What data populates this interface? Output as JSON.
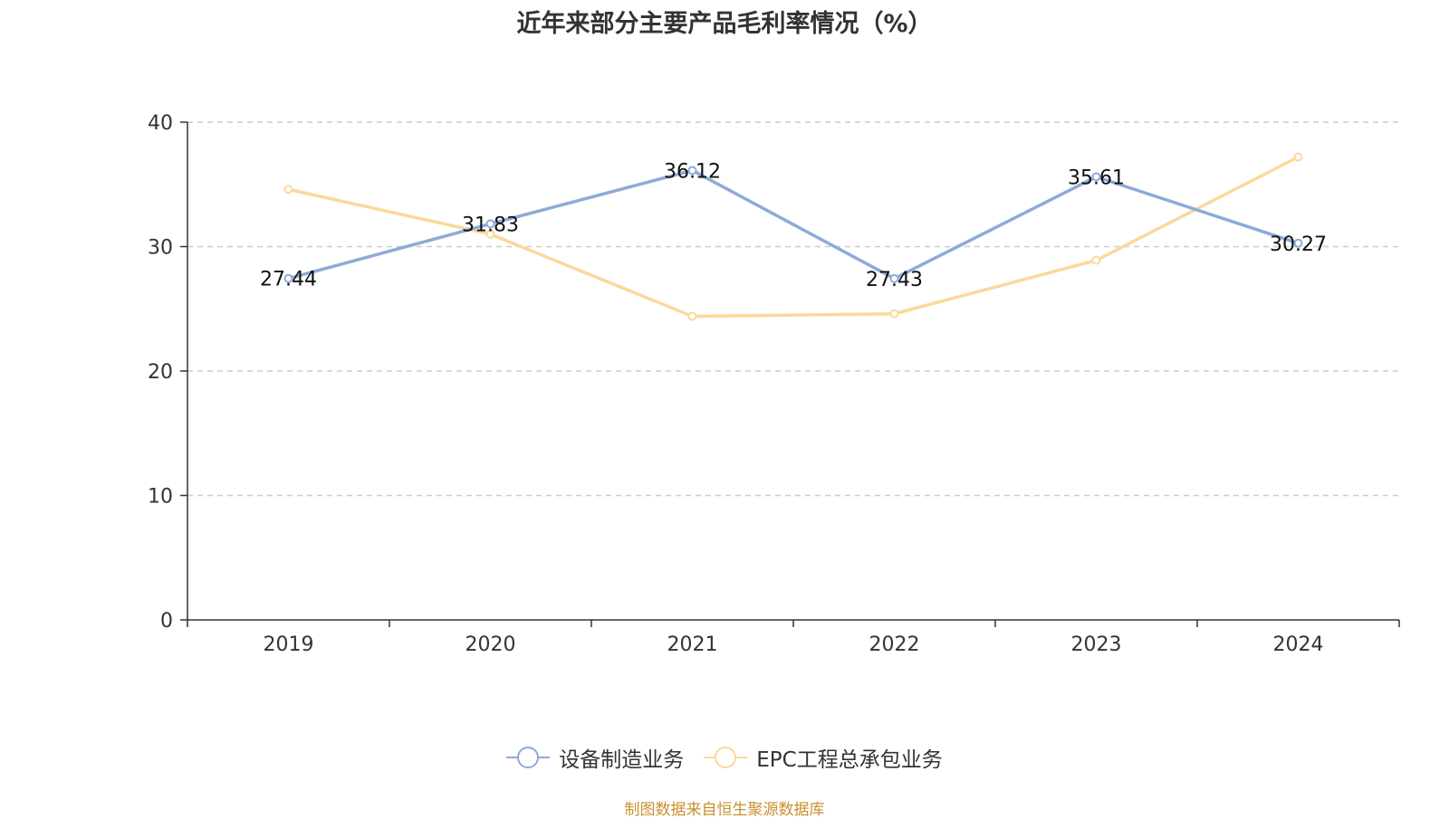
{
  "chart_data": {
    "type": "line",
    "title": "近年来部分主要产品毛利率情况（%）",
    "categories": [
      "2019",
      "2020",
      "2021",
      "2022",
      "2023",
      "2024"
    ],
    "ylim": [
      0,
      40
    ],
    "yticks": [
      0,
      10,
      20,
      30,
      40
    ],
    "grid": true,
    "legend_position": "bottom",
    "series": [
      {
        "name": "设备制造业务",
        "color": "#8eaad8",
        "values": [
          27.44,
          31.83,
          36.12,
          27.43,
          35.61,
          30.27
        ],
        "labels": [
          "27.44",
          "31.83",
          "36.12",
          "27.43",
          "35.61",
          "30.27"
        ]
      },
      {
        "name": "EPC工程总承包业务",
        "color": "#fad99a",
        "values": [
          34.6,
          31.0,
          24.4,
          24.6,
          28.9,
          37.2
        ]
      }
    ]
  },
  "source": "制图数据来自恒生聚源数据库"
}
